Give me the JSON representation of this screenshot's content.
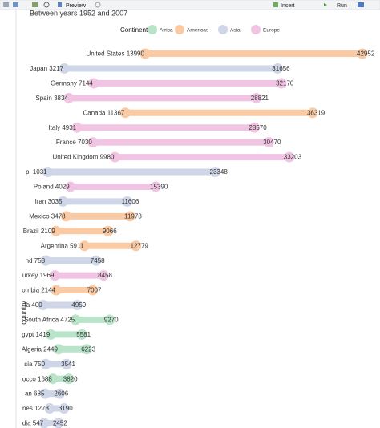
{
  "ui": {
    "toolbar": {
      "preview": "Preview",
      "insert": "Insert",
      "run": "Run"
    }
  },
  "chart_data": {
    "type": "dumbbell",
    "subtitle": "Between years 1952 and 2007",
    "y_label": "country",
    "legend": {
      "title": "Continent",
      "items": [
        {
          "name": "Africa",
          "color": "#b9e4c9"
        },
        {
          "name": "Americas",
          "color": "#f9caa4"
        },
        {
          "name": "Asia",
          "color": "#cfd6e7"
        },
        {
          "name": "Europe",
          "color": "#f1c4e3"
        }
      ]
    },
    "categories": [
      "United States 13990",
      "Japan 3217",
      "Germany 7144",
      "Spain 3834",
      "Canada 11367",
      "Italy 4931",
      "France 7030",
      "United Kingdom 9980",
      "p. 1031",
      "Poland 4029",
      "Iran 3035",
      "Mexico 3478",
      "Brazil 2109",
      "Argentina 5911",
      "nd 758",
      "urkey 1969",
      "ombia 2144",
      "ta 400",
      "South Africa 4725",
      "gypt 1419",
      "Algeria 2449",
      "sia 750",
      "occo 1688",
      "an 685",
      "nes 1273",
      "dia 547"
    ],
    "start": [
      13990,
      3217,
      7144,
      3834,
      11367,
      4931,
      7030,
      9980,
      1031,
      4029,
      3035,
      3478,
      2109,
      5911,
      758,
      1969,
      2144,
      400,
      4725,
      1419,
      2449,
      750,
      1688,
      685,
      1273,
      547
    ],
    "end": [
      42952,
      31656,
      32170,
      28821,
      36319,
      28570,
      30470,
      33203,
      23348,
      15390,
      11606,
      11978,
      9066,
      12779,
      7458,
      8458,
      7007,
      4959,
      9270,
      5581,
      6223,
      3541,
      3820,
      2606,
      3190,
      2452
    ],
    "continent": [
      1,
      2,
      3,
      3,
      1,
      3,
      3,
      3,
      2,
      3,
      2,
      1,
      1,
      1,
      2,
      3,
      1,
      2,
      0,
      0,
      0,
      2,
      0,
      2,
      2,
      2
    ]
  }
}
